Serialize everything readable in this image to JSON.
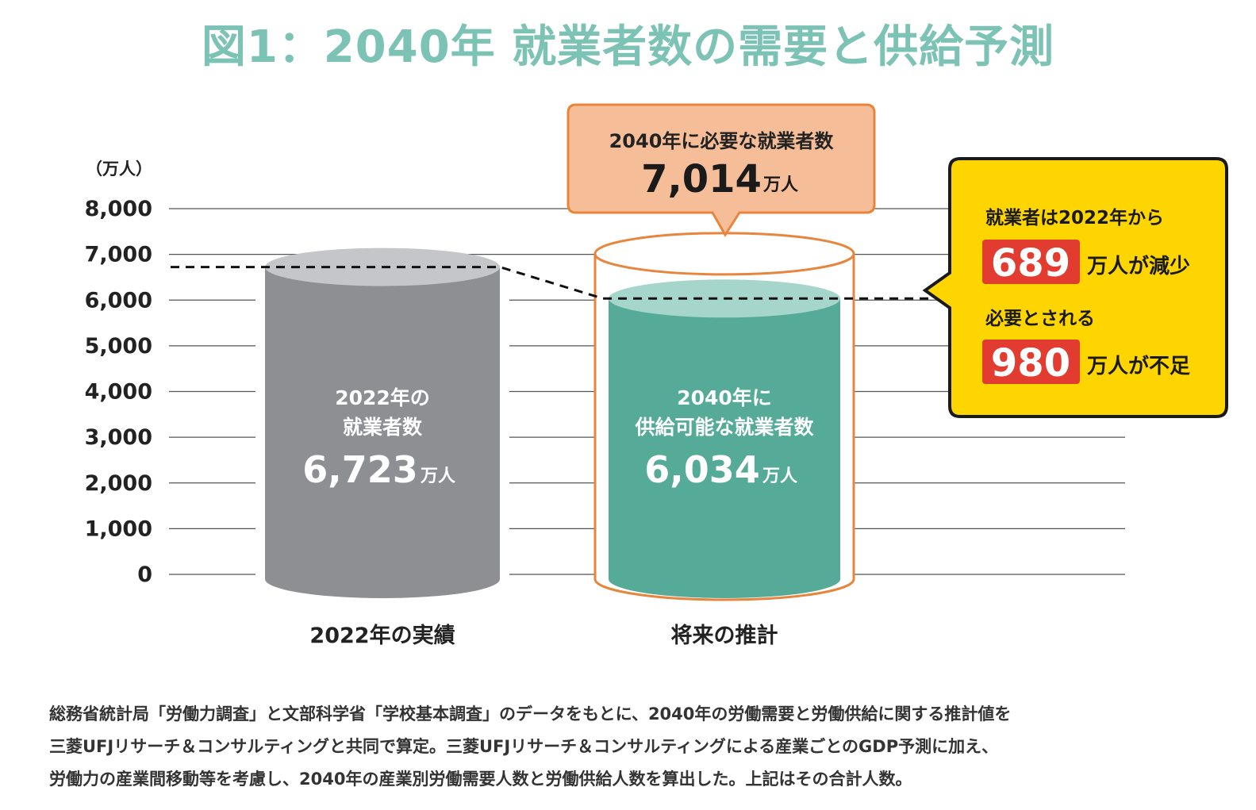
{
  "title": "図1：2040年 就業者数の需要と供給予測",
  "chart_data": {
    "type": "bar",
    "title": "図1：2040年 就業者数の需要と供給予測",
    "ylabel": "（万人）",
    "ylim": [
      0,
      8000
    ],
    "yticks": [
      0,
      1000,
      2000,
      3000,
      4000,
      5000,
      6000,
      7000,
      8000
    ],
    "yticklabels": [
      "0",
      "1,000",
      "2,000",
      "3,000",
      "4,000",
      "5,000",
      "6,000",
      "7,000",
      "8,000"
    ],
    "categories": [
      "2022年の実績",
      "将来の推計"
    ],
    "grid": true,
    "bars": [
      {
        "category": "2022年の実績",
        "label_line1": "2022年の",
        "label_line2": "就業者数",
        "value": 6723,
        "value_text": "6,723",
        "unit": "万人",
        "color": "#8e8f92",
        "top_color": "#c5c6c9"
      },
      {
        "category": "将来の推計",
        "label_line1": "2040年に",
        "label_line2": "供給可能な就業者数",
        "value": 6034,
        "value_text": "6,034",
        "unit": "万人",
        "color": "#55ab97",
        "top_color": "#a6d6cb"
      }
    ],
    "demand": {
      "category": "将来の推計",
      "label": "2040年に必要な就業者数",
      "value": 7014,
      "value_text": "7,014",
      "unit": "万人",
      "outline_color": "#e8853d",
      "fill_color": "#f6be98"
    },
    "callout": {
      "line1": "就業者は2022年から",
      "decrease_value": "689",
      "decrease_suffix": "万人が減少",
      "line3": "必要とされる",
      "shortage_value": "980",
      "shortage_suffix": "万人が不足",
      "bg_color": "#ffd500",
      "badge_color": "#e23c30"
    }
  },
  "note": [
    "総務省統計局「労働力調査」と文部科学省「学校基本調査」のデータをもとに、2040年の労働需要と労働供給に関する推計値を",
    "三菱UFJリサーチ＆コンサルティングと共同で算定。三菱UFJリサーチ＆コンサルティングによる産業ごとのGDP予測に加え、",
    "労働力の産業間移動等を考慮し、2040年の産業別労働需要人数と労働供給人数を算出した。上記はその合計人数。"
  ]
}
